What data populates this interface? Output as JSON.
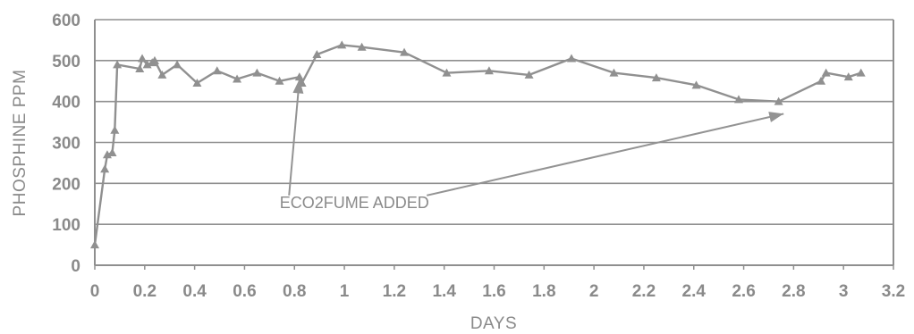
{
  "chart_data": {
    "type": "line",
    "title": "",
    "xlabel": "DAYS",
    "ylabel": "PHOSPHINE  PPM",
    "xlim": [
      0,
      3.2
    ],
    "ylim": [
      0,
      600
    ],
    "xticks": [
      "0",
      "0.2",
      "0.4",
      "0.6",
      "0.8",
      "1",
      "1.2",
      "1.4",
      "1.6",
      "1.8",
      "2",
      "2.2",
      "2.4",
      "2.6",
      "2.8",
      "3",
      "3.2"
    ],
    "yticks": [
      "0",
      "100",
      "200",
      "300",
      "400",
      "500",
      "600"
    ],
    "grid": "horizontal",
    "legend": "none",
    "series": [
      {
        "marker": "triangle",
        "color": "#909090",
        "x": [
          0,
          0.04,
          0.05,
          0.07,
          0.08,
          0.09,
          0.18,
          0.19,
          0.21,
          0.23,
          0.24,
          0.27,
          0.33,
          0.41,
          0.49,
          0.57,
          0.65,
          0.74,
          0.82,
          0.83,
          0.89,
          0.99,
          1.07,
          1.24,
          1.41,
          1.58,
          1.74,
          1.91,
          2.08,
          2.25,
          2.41,
          2.58,
          2.74,
          2.91,
          2.93,
          3.02,
          3.07
        ],
        "y": [
          50,
          235,
          270,
          275,
          330,
          490,
          480,
          505,
          490,
          495,
          500,
          465,
          490,
          445,
          475,
          455,
          470,
          450,
          460,
          445,
          515,
          538,
          533,
          520,
          470,
          475,
          465,
          505,
          470,
          458,
          440,
          405,
          400,
          450,
          470,
          460,
          470
        ]
      }
    ],
    "annotations": [
      {
        "text": "ECO2FUME ADDED",
        "x": 1.04,
        "y": 140,
        "arrow_to": [
          [
            0.82,
            455
          ],
          [
            2.76,
            370
          ]
        ]
      }
    ]
  }
}
